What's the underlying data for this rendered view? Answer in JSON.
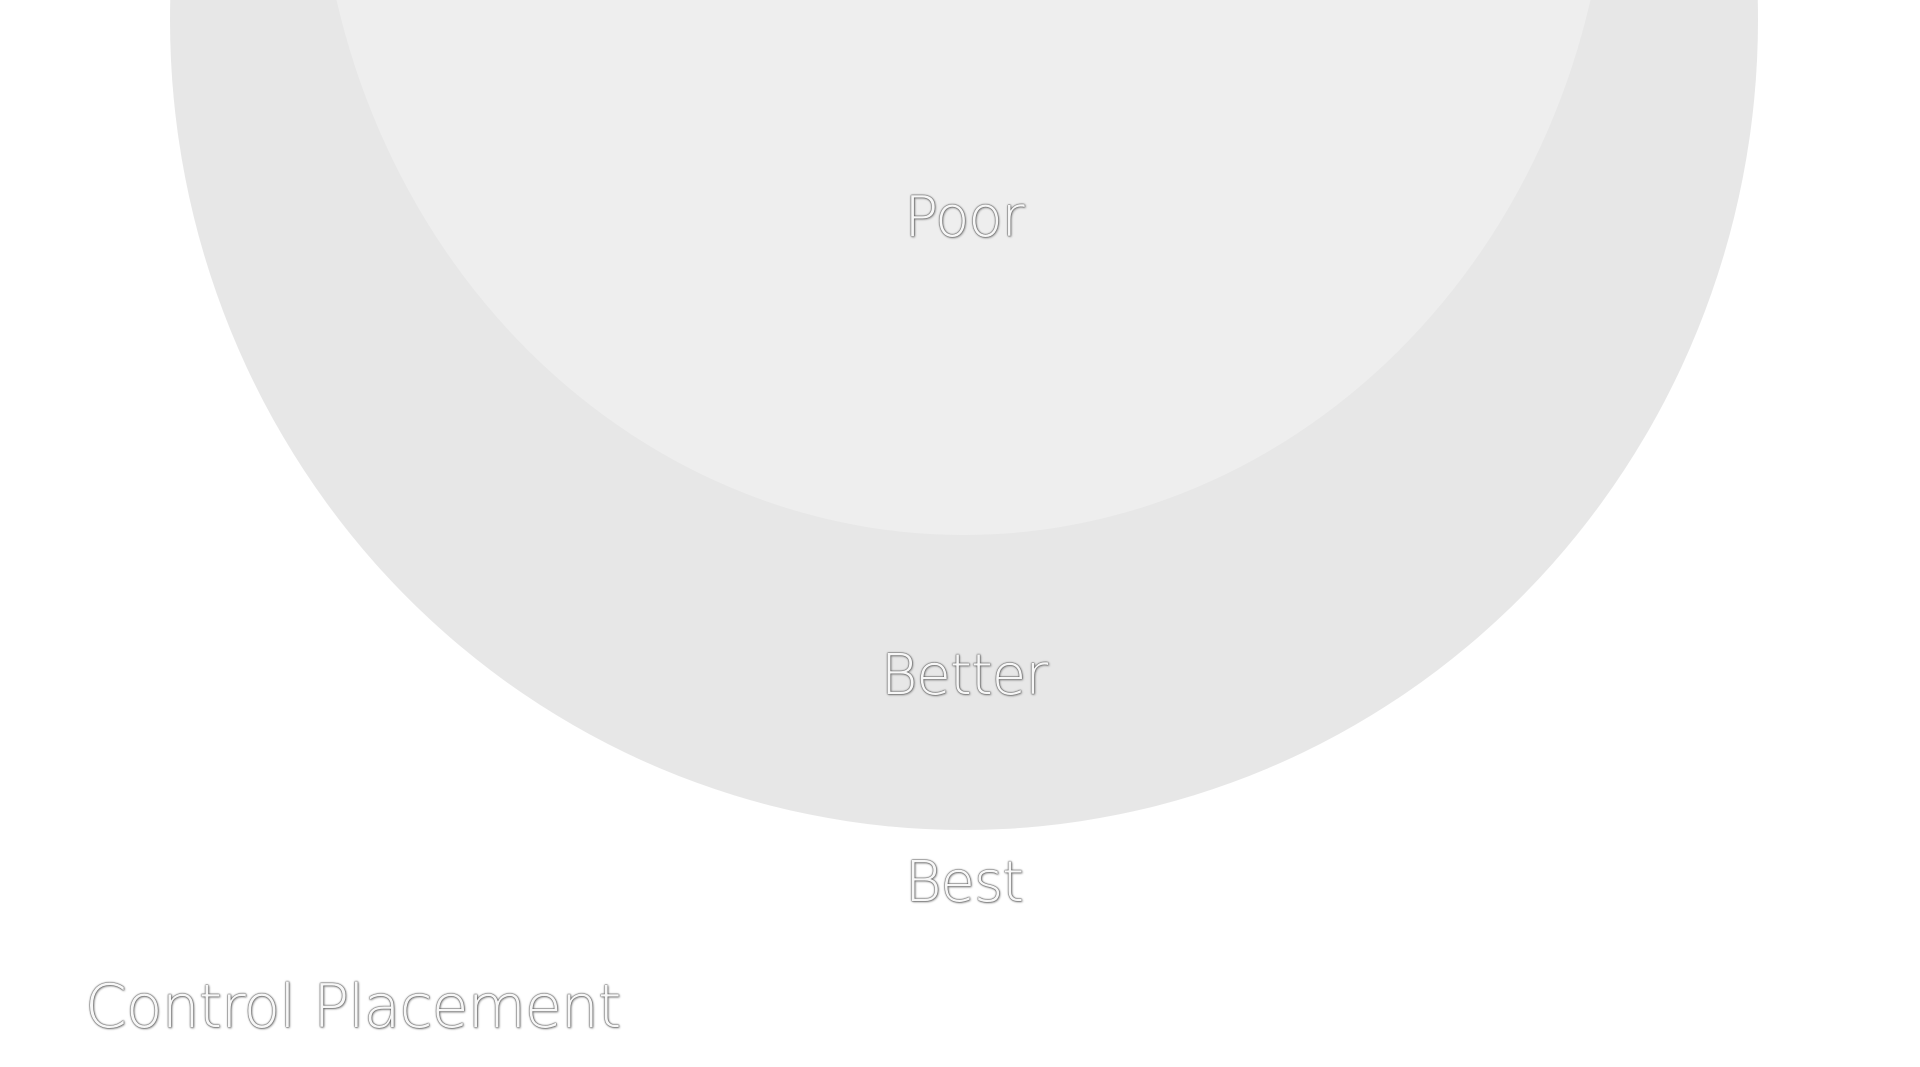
{
  "diagram": {
    "title": "Control Placement",
    "zones": [
      {
        "id": "poor",
        "label": "Poor",
        "color": "#eeeeee"
      },
      {
        "id": "better",
        "label": "Better",
        "color": "#e7e7e7"
      },
      {
        "id": "best",
        "label": "Best",
        "color": "#ffffff"
      }
    ]
  }
}
